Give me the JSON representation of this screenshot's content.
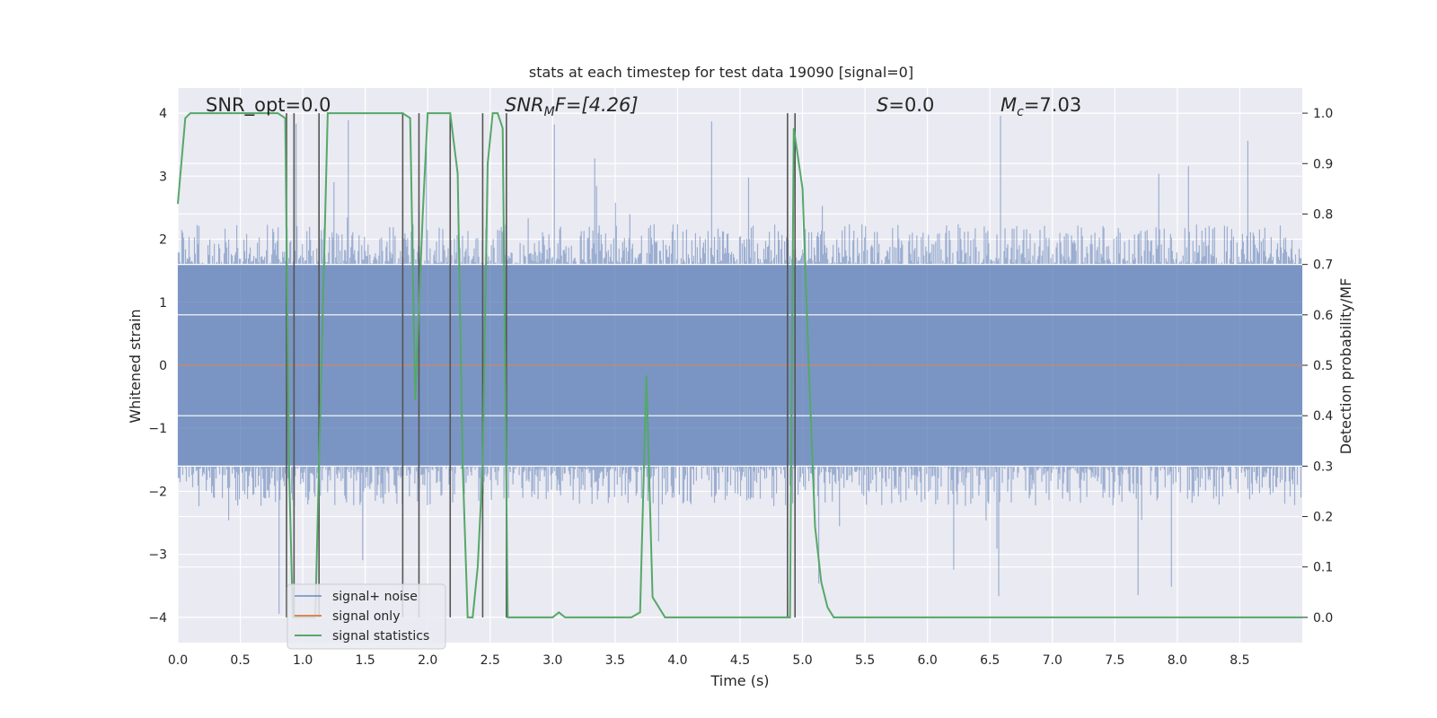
{
  "chart_data": {
    "type": "line",
    "title": "stats at each timestep for test data 19090 [signal=0]",
    "xlabel": "Time (s)",
    "ylabel": "Whitened strain",
    "ylabel_right": "Detection probability/MF",
    "xlim": [
      0,
      9
    ],
    "ylim": [
      -4.4,
      4.4
    ],
    "ylim_right": [
      -0.05,
      1.05
    ],
    "x_ticks": [
      "0.0",
      "0.5",
      "1.0",
      "1.5",
      "2.0",
      "2.5",
      "3.0",
      "3.5",
      "4.0",
      "4.5",
      "5.0",
      "5.5",
      "6.0",
      "6.5",
      "7.0",
      "7.5",
      "8.0",
      "8.5"
    ],
    "x_tick_values": [
      0,
      0.5,
      1,
      1.5,
      2,
      2.5,
      3,
      3.5,
      4,
      4.5,
      5,
      5.5,
      6,
      6.5,
      7,
      7.5,
      8,
      8.5
    ],
    "y_ticks": [
      "4",
      "3",
      "2",
      "1",
      "0",
      "−1",
      "−2",
      "−3",
      "−4"
    ],
    "y_tick_values": [
      4,
      3,
      2,
      1,
      0,
      -1,
      -2,
      -3,
      -4
    ],
    "y_ticks_right": [
      "1.0",
      "0.9",
      "0.8",
      "0.7",
      "0.6",
      "0.5",
      "0.4",
      "0.3",
      "0.2",
      "0.1",
      "0.0"
    ],
    "y_tick_values_right": [
      1.0,
      0.9,
      0.8,
      0.7,
      0.6,
      0.5,
      0.4,
      0.3,
      0.2,
      0.1,
      0.0
    ],
    "grid": true,
    "legend_placement": "lower-left",
    "annotations": {
      "snr_opt": "SNR_opt=0.0",
      "snr_mf_main": "SNR",
      "snr_mf_sub": "M",
      "snr_mf_rest": "F=[4.26]",
      "s_italic": "S",
      "s_rest": "=0.0",
      "mc_main": "M",
      "mc_sub": "c",
      "mc_rest": "=7.03"
    },
    "series": [
      {
        "name": "signal+ noise",
        "color": "#4c72b0",
        "axis": "left",
        "envelope": {
          "core_amplitude": 1.6,
          "typical_peak": 2.0,
          "max_peak": 4.0
        }
      },
      {
        "name": "signal only",
        "color": "#dd8452",
        "axis": "left",
        "constant_value": 0
      },
      {
        "name": "signal statistics",
        "color": "#55a868",
        "axis": "right",
        "x": [
          0.0,
          0.06,
          0.1,
          0.2,
          0.4,
          0.6,
          0.8,
          0.86,
          0.89,
          0.92,
          1.0,
          1.1,
          1.2,
          1.4,
          1.6,
          1.8,
          1.86,
          1.9,
          1.96,
          2.0,
          2.1,
          2.18,
          2.24,
          2.28,
          2.32,
          2.36,
          2.4,
          2.44,
          2.48,
          2.52,
          2.56,
          2.6,
          2.64,
          2.66,
          2.7,
          2.8,
          2.9,
          3.0,
          3.05,
          3.1,
          3.3,
          3.5,
          3.63,
          3.7,
          3.75,
          3.8,
          3.85,
          3.9,
          4.2,
          4.5,
          4.8,
          4.85,
          4.9,
          4.93,
          5.0,
          5.05,
          5.1,
          5.15,
          5.2,
          5.25,
          5.3,
          6.0,
          7.0,
          8.0,
          9.0
        ],
        "y": [
          0.82,
          0.99,
          1.0,
          1.0,
          1.0,
          1.0,
          1.0,
          0.99,
          0.3,
          0.0,
          0.0,
          0.0,
          1.0,
          1.0,
          1.0,
          1.0,
          0.99,
          0.43,
          0.8,
          1.0,
          1.0,
          1.0,
          0.88,
          0.3,
          0.0,
          0.0,
          0.1,
          0.3,
          0.9,
          1.0,
          1.0,
          0.97,
          0.0,
          0.0,
          0.0,
          0.0,
          0.0,
          0.0,
          0.01,
          0.0,
          0.0,
          0.0,
          0.0,
          0.01,
          0.48,
          0.04,
          0.02,
          0.0,
          0.0,
          0.0,
          0.0,
          0.0,
          0.0,
          0.97,
          0.85,
          0.5,
          0.18,
          0.07,
          0.02,
          0.0,
          0.0,
          0.0,
          0.0,
          0.0,
          0.0
        ]
      }
    ],
    "vertical_markers": [
      0.87,
      0.93,
      1.13,
      1.8,
      1.93,
      2.18,
      2.44,
      2.63,
      4.88,
      4.94
    ]
  }
}
